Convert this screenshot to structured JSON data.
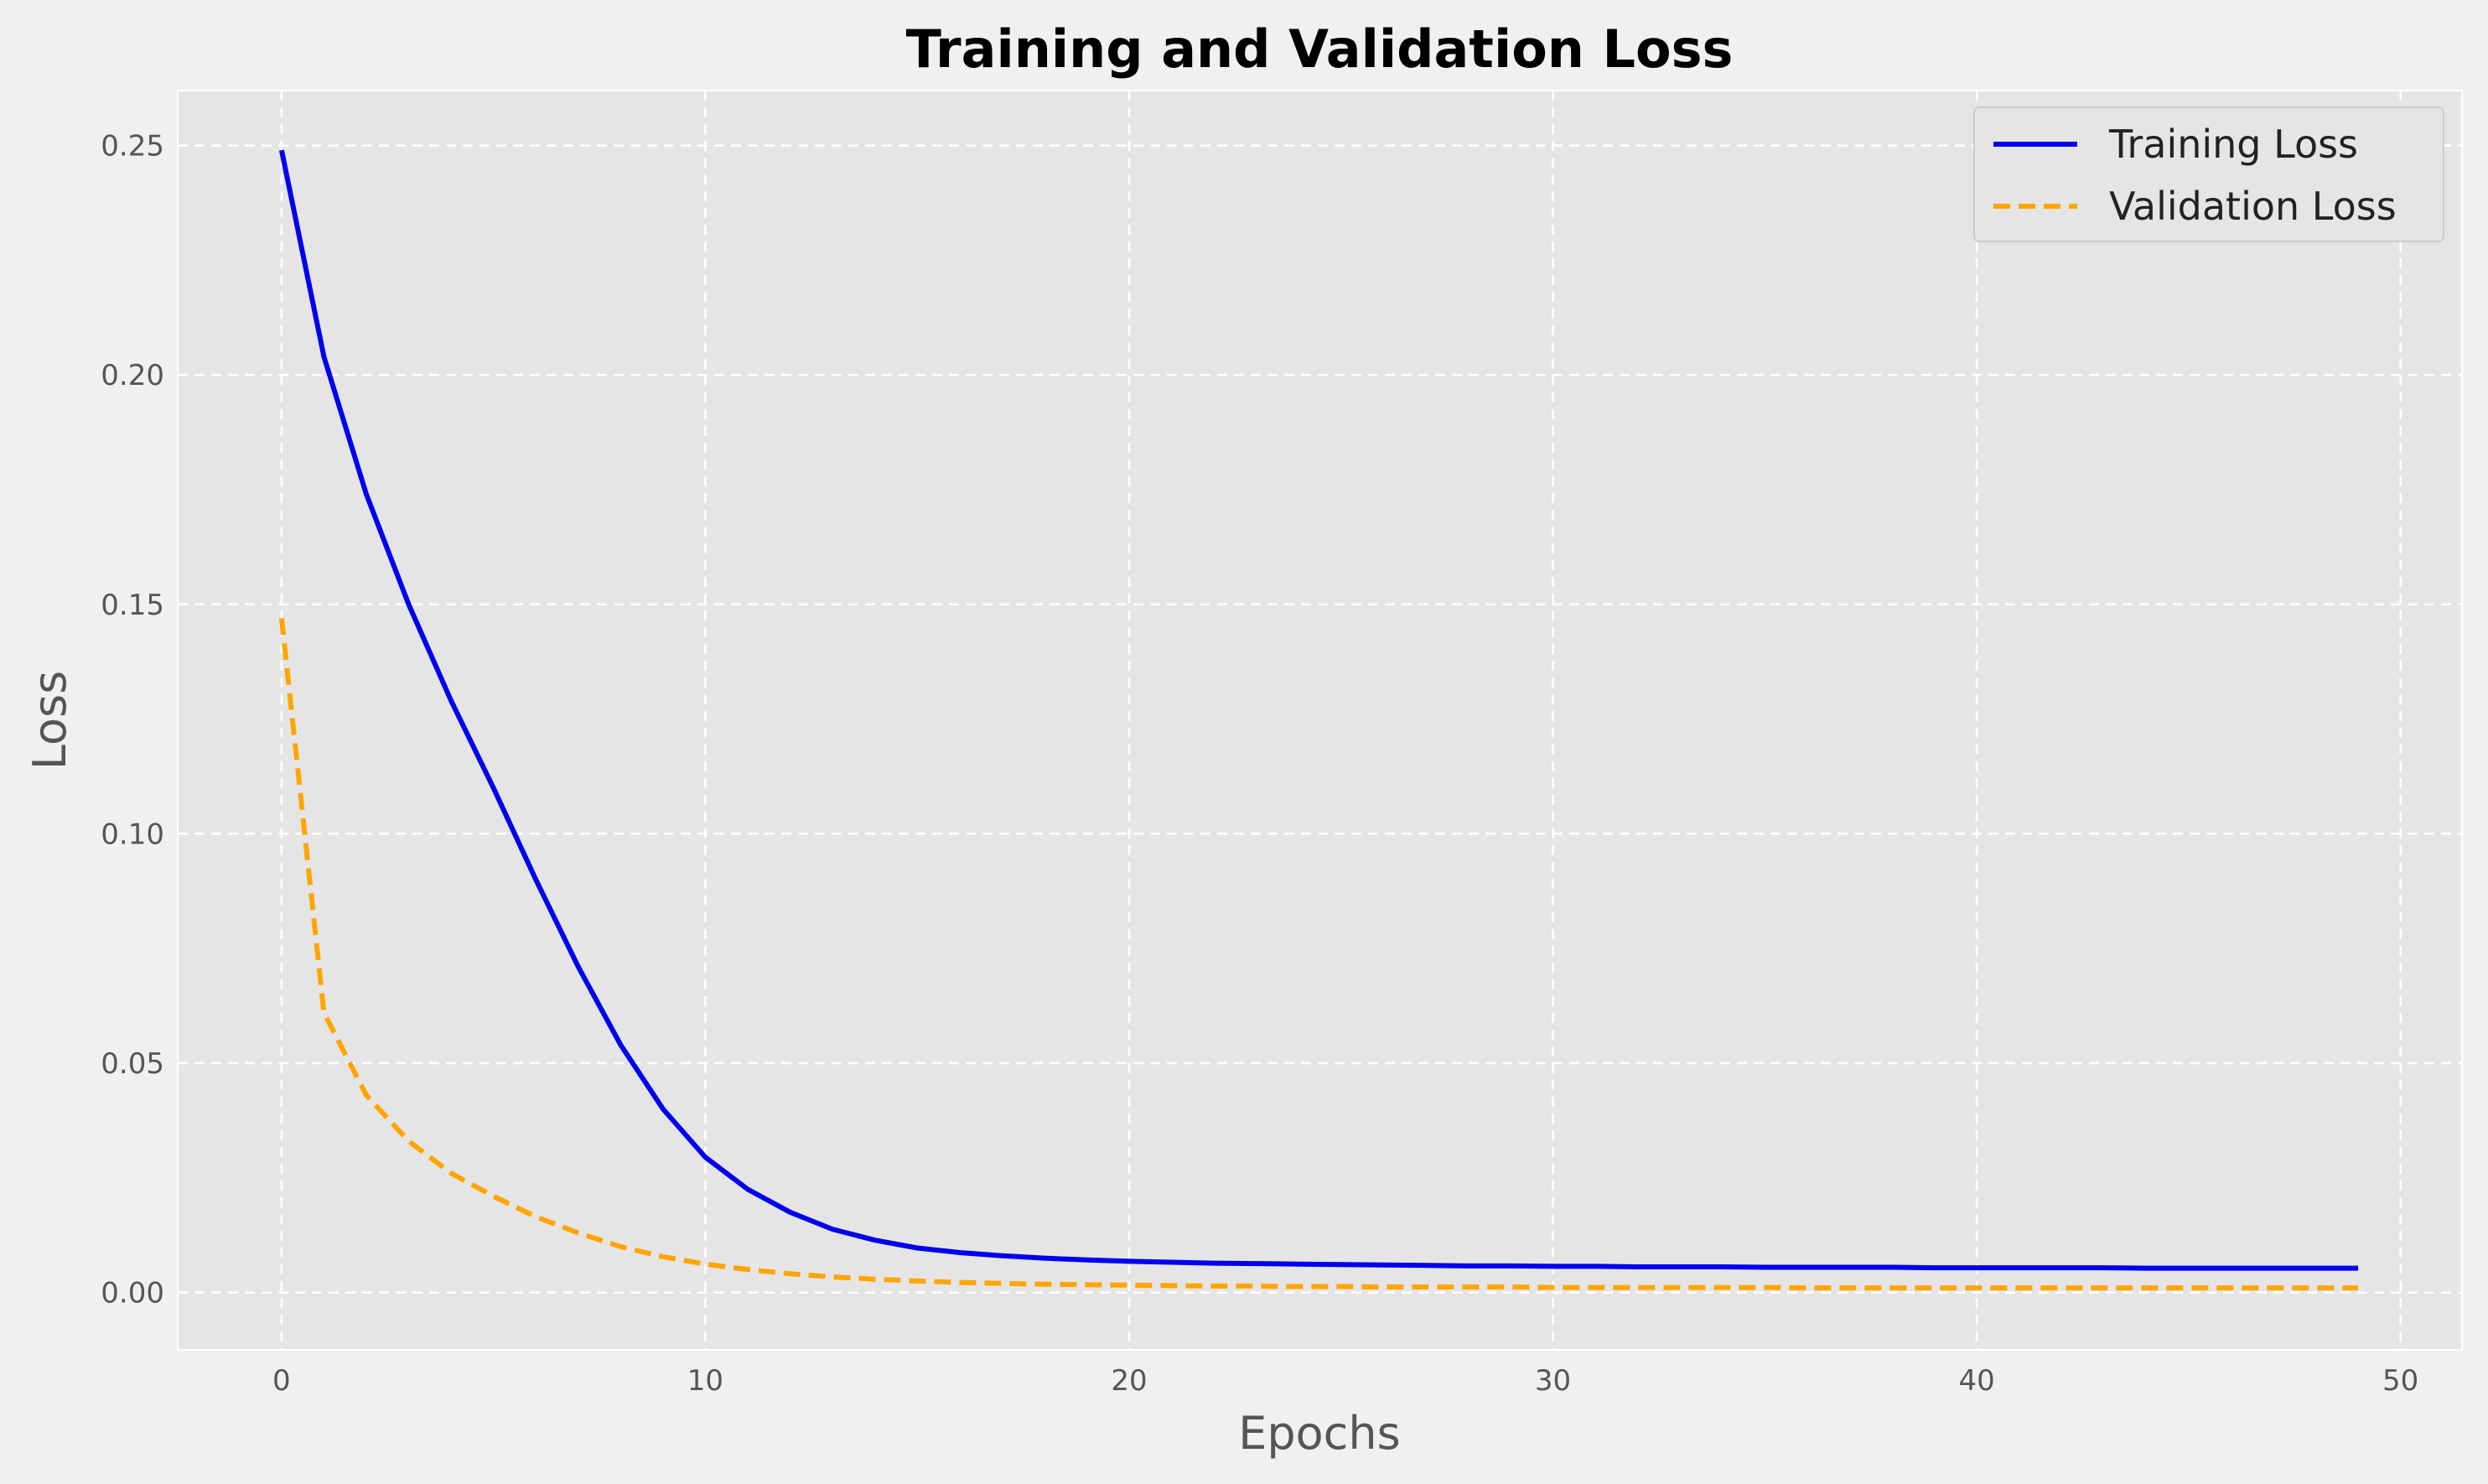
{
  "chart_data": {
    "type": "line",
    "title": "Training and Validation Loss",
    "xlabel": "Epochs",
    "ylabel": "Loss",
    "xlim": [
      -2.45,
      51.45
    ],
    "ylim": [
      -0.0125,
      0.262
    ],
    "xticks": [
      0,
      10,
      20,
      30,
      40,
      50
    ],
    "xtick_labels": [
      "0",
      "10",
      "20",
      "30",
      "40",
      "50"
    ],
    "yticks": [
      0.0,
      0.05,
      0.1,
      0.15,
      0.2,
      0.25
    ],
    "ytick_labels": [
      "0.00",
      "0.05",
      "0.10",
      "0.15",
      "0.20",
      "0.25"
    ],
    "grid": true,
    "legend_position": "top-right",
    "x": [
      0,
      1,
      2,
      3,
      4,
      5,
      6,
      7,
      8,
      9,
      10,
      11,
      12,
      13,
      14,
      15,
      16,
      17,
      18,
      19,
      20,
      21,
      22,
      23,
      24,
      25,
      26,
      27,
      28,
      29,
      30,
      31,
      32,
      33,
      34,
      35,
      36,
      37,
      38,
      39,
      40,
      41,
      42,
      43,
      44,
      45,
      46,
      47,
      48,
      49
    ],
    "series": [
      {
        "name": "Training Loss",
        "color": "#0000ee",
        "style": "solid",
        "values": [
          0.249,
          0.204,
          0.174,
          0.15,
          0.129,
          0.11,
          0.09,
          0.071,
          0.054,
          0.04,
          0.0295,
          0.0225,
          0.0175,
          0.0138,
          0.0114,
          0.0097,
          0.0087,
          0.008,
          0.0075,
          0.0071,
          0.0068,
          0.0066,
          0.0064,
          0.0063,
          0.0062,
          0.0061,
          0.006,
          0.0059,
          0.0058,
          0.0058,
          0.0057,
          0.0057,
          0.0056,
          0.0056,
          0.0056,
          0.0055,
          0.0055,
          0.0055,
          0.0055,
          0.0054,
          0.0054,
          0.0054,
          0.0054,
          0.0054,
          0.0053,
          0.0053,
          0.0053,
          0.0053,
          0.0053,
          0.0053
        ]
      },
      {
        "name": "Validation Loss",
        "color": "#ffa500",
        "style": "dashed",
        "values": [
          0.147,
          0.061,
          0.043,
          0.033,
          0.026,
          0.021,
          0.0165,
          0.013,
          0.01,
          0.0078,
          0.0062,
          0.005,
          0.0041,
          0.0034,
          0.0029,
          0.0025,
          0.0022,
          0.002,
          0.0018,
          0.0017,
          0.0016,
          0.0015,
          0.0014,
          0.0014,
          0.0013,
          0.0013,
          0.0012,
          0.0012,
          0.0012,
          0.0012,
          0.0011,
          0.0011,
          0.0011,
          0.0011,
          0.0011,
          0.0011,
          0.001,
          0.001,
          0.001,
          0.001,
          0.001,
          0.001,
          0.001,
          0.001,
          0.001,
          0.001,
          0.001,
          0.001,
          0.001,
          0.001
        ]
      }
    ]
  }
}
